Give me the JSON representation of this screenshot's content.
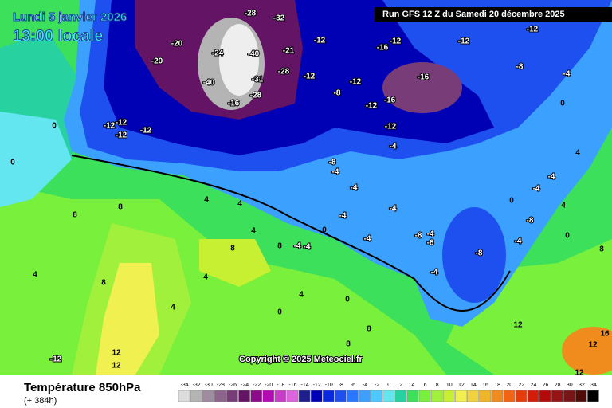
{
  "header": {
    "date": "Lundi 5 janvier 2026",
    "time": "13:00 locale",
    "run": "Run GFS 12 Z du Samedi 20 décembre 2025"
  },
  "copyright": "Copyright © 2025 Meteociel.fr",
  "footer": {
    "title": "Température 850hPa",
    "lead": "(+ 384h)"
  },
  "scale": {
    "labels": [
      -34,
      -32,
      -30,
      -28,
      -26,
      -24,
      -22,
      -20,
      -18,
      -16,
      -14,
      -12,
      -10,
      -8,
      -6,
      -4,
      -2,
      0,
      2,
      4,
      6,
      8,
      10,
      12,
      14,
      16,
      18,
      20,
      22,
      24,
      26,
      28,
      30,
      32,
      34
    ],
    "colors": [
      "#dcdcdc",
      "#b4b4b4",
      "#a08ca0",
      "#8c648c",
      "#783c78",
      "#641464",
      "#8c0a8c",
      "#b40ab4",
      "#c83cc8",
      "#dc64dc",
      "#1e1e8c",
      "#0000b4",
      "#0a28dc",
      "#1e50f0",
      "#2878ff",
      "#3ca0ff",
      "#50c8ff",
      "#64e6f0",
      "#28d2a0",
      "#3ce05a",
      "#78f03c",
      "#a0f03c",
      "#c8f032",
      "#f0f050",
      "#f0d23c",
      "#f0b428",
      "#f08c1e",
      "#f06414",
      "#e63c0a",
      "#d21e0a",
      "#b40a0a",
      "#961414",
      "#781414",
      "#500a0a",
      "#000000"
    ]
  },
  "map": {
    "labels": [
      "-20",
      "-28",
      "-32",
      "-20",
      "-24",
      "-40",
      "-21",
      "-28",
      "-31",
      "-40",
      "-28",
      "-16",
      "-12",
      "-16",
      "-12",
      "-12",
      "-12",
      "-16",
      "-12",
      "-12",
      "-12",
      "-16",
      "-8",
      "-12",
      "-12",
      "-12",
      "-12",
      "-12",
      "-8",
      "-4",
      "0",
      "-4",
      "-8",
      "-4",
      "-4",
      "-4",
      "-4",
      "-8",
      "-4",
      "-8",
      "-8",
      "-4",
      "-8",
      "-4",
      "0",
      "0",
      "-4",
      "-4",
      "-4",
      "4",
      "4",
      "8",
      "8",
      "8",
      "8",
      "8",
      "4",
      "4",
      "4",
      "4",
      "0",
      "0",
      "0",
      "0",
      "4",
      "12",
      "12",
      "-12",
      "8",
      "8",
      "12",
      "16",
      "12",
      "12",
      "4",
      "-4",
      "-4",
      "0",
      "4",
      "8"
    ]
  }
}
